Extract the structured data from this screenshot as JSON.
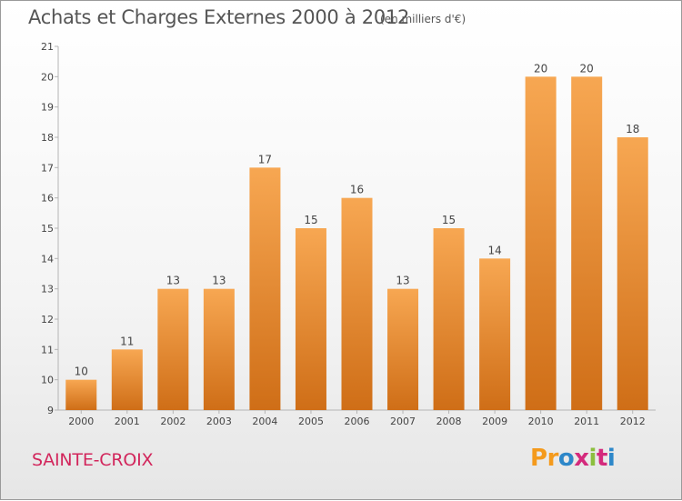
{
  "chart_data": {
    "type": "bar",
    "title": "Achats et Charges Externes 2000 à 2012",
    "unit": "(en milliers d'€)",
    "categories": [
      "2000",
      "2001",
      "2002",
      "2003",
      "2004",
      "2005",
      "2006",
      "2007",
      "2008",
      "2009",
      "2010",
      "2011",
      "2012"
    ],
    "values": [
      10,
      11,
      13,
      13,
      17,
      15,
      16,
      13,
      15,
      14,
      20,
      20,
      18
    ],
    "data_labels": [
      "10",
      "11",
      "13",
      "13",
      "17",
      "15",
      "16",
      "13",
      "15",
      "14",
      "20",
      "20",
      "18"
    ],
    "yticks": [
      "9",
      "10",
      "11",
      "12",
      "13",
      "14",
      "15",
      "16",
      "17",
      "18",
      "19",
      "20",
      "21"
    ],
    "ylim": [
      9,
      21
    ],
    "grid": false,
    "bar_color_top": "#f7a752",
    "bar_color_bottom": "#cf6e17"
  },
  "footer": {
    "commune": "SAINTE-CROIX",
    "logo_letters": [
      "P",
      "r",
      "o",
      "x",
      "i",
      "t",
      "i"
    ],
    "logo_colors": [
      "#f49a1c",
      "#f49a1c",
      "#2d87c9",
      "#d42a7c",
      "#8cbf3f",
      "#d42a7c",
      "#2d87c9"
    ]
  }
}
